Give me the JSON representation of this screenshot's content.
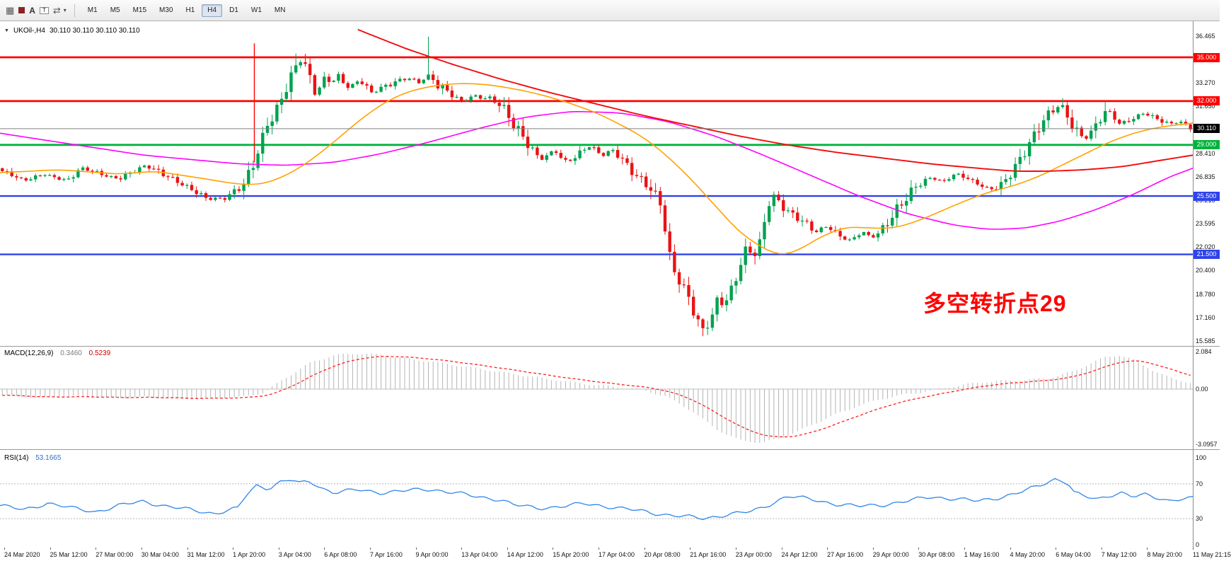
{
  "toolbar": {
    "timeframes": [
      "M1",
      "M5",
      "M15",
      "M30",
      "H1",
      "H4",
      "D1",
      "W1",
      "MN"
    ],
    "active_timeframe": "H4",
    "icons": {
      "grid": "▦",
      "text_tool": "A",
      "objects": "T",
      "cursor": "⇄",
      "caret": "▾"
    }
  },
  "chart": {
    "title": "UKOil-,H4",
    "ohlc_text": "30.110 30.110 30.110 30.110",
    "collapse_icon": "▼",
    "annotation": "多空转折点29",
    "annotation_color": "#ff0000",
    "axis_ticks": [
      "36.465",
      "33.270",
      "31.650",
      "28.410",
      "26.835",
      "25.215",
      "23.595",
      "22.020",
      "20.400",
      "18.780",
      "17.160",
      "15.585"
    ],
    "levels": [
      {
        "label": "35.000",
        "price": 35.0,
        "color": "#ff0000",
        "width": 2.8
      },
      {
        "label": "32.000",
        "price": 32.0,
        "color": "#ff0000",
        "width": 2.8
      },
      {
        "label": "29.000",
        "price": 29.0,
        "color": "#00b33c",
        "width": 2.8
      },
      {
        "label": "25.500",
        "price": 25.5,
        "color": "#2e43eb",
        "width": 2.4
      },
      {
        "label": "21.500",
        "price": 21.5,
        "color": "#2e43eb",
        "width": 2.4
      }
    ],
    "current_price": {
      "label": "30.110",
      "price": 30.11,
      "color": "#000000"
    }
  },
  "macd": {
    "label": "MACD(12,26,9)",
    "value_main": "0.3460",
    "value_signal": "0.5239",
    "axis_labels": [
      "2.084",
      "0.00",
      "-3.0957"
    ]
  },
  "rsi": {
    "label": "RSI(14)",
    "value": "53.1665",
    "axis_labels": [
      "100",
      "70",
      "30",
      "0"
    ]
  },
  "time_axis": {
    "labels": [
      "24 Mar 2020",
      "25 Mar 12:00",
      "27 Mar 00:00",
      "30 Mar 04:00",
      "31 Mar 12:00",
      "1 Apr 20:00",
      "3 Apr 04:00",
      "6 Apr 08:00",
      "7 Apr 16:00",
      "9 Apr 00:00",
      "13 Apr 04:00",
      "14 Apr 12:00",
      "15 Apr 20:00",
      "17 Apr 04:00",
      "20 Apr 08:00",
      "21 Apr 16:00",
      "23 Apr 00:00",
      "24 Apr 12:00",
      "27 Apr 16:00",
      "29 Apr 00:00",
      "30 Apr 08:00",
      "1 May 16:00",
      "4 May 20:00",
      "6 May 04:00",
      "7 May 12:00",
      "8 May 20:00",
      "11 May 21:15"
    ]
  },
  "chart_data": {
    "type": "candlestick",
    "symbol": "UKOil-",
    "period": "H4",
    "price_keyframes": [
      [
        0,
        27.2
      ],
      [
        0.018,
        26.5
      ],
      [
        0.036,
        27.0
      ],
      [
        0.055,
        26.6
      ],
      [
        0.066,
        27.4
      ],
      [
        0.085,
        26.9
      ],
      [
        0.098,
        26.7
      ],
      [
        0.11,
        27.3
      ],
      [
        0.121,
        27.6
      ],
      [
        0.135,
        26.9
      ],
      [
        0.151,
        26.3
      ],
      [
        0.165,
        25.8
      ],
      [
        0.172,
        25.4
      ],
      [
        0.187,
        25.3
      ],
      [
        0.197,
        25.8
      ],
      [
        0.203,
        26.1
      ],
      [
        0.21,
        27.3
      ],
      [
        0.216,
        28.8
      ],
      [
        0.223,
        30.6
      ],
      [
        0.229,
        31.3
      ],
      [
        0.236,
        32.5
      ],
      [
        0.242,
        33.6
      ],
      [
        0.249,
        34.6
      ],
      [
        0.252,
        34.8
      ],
      [
        0.258,
        33.6
      ],
      [
        0.262,
        32.4
      ],
      [
        0.268,
        33.0
      ],
      [
        0.272,
        33.6
      ],
      [
        0.278,
        33.3
      ],
      [
        0.282,
        33.9
      ],
      [
        0.288,
        33.2
      ],
      [
        0.292,
        33.0
      ],
      [
        0.301,
        33.5
      ],
      [
        0.307,
        32.9
      ],
      [
        0.311,
        32.5
      ],
      [
        0.318,
        32.8
      ],
      [
        0.325,
        33.0
      ],
      [
        0.331,
        33.3
      ],
      [
        0.338,
        33.5
      ],
      [
        0.344,
        33.6
      ],
      [
        0.351,
        33.3
      ],
      [
        0.359,
        33.8
      ],
      [
        0.364,
        33.4
      ],
      [
        0.367,
        33.0
      ],
      [
        0.373,
        32.7
      ],
      [
        0.377,
        32.4
      ],
      [
        0.383,
        32.1
      ],
      [
        0.387,
        31.9
      ],
      [
        0.393,
        32.2
      ],
      [
        0.397,
        32.4
      ],
      [
        0.403,
        32.2
      ],
      [
        0.41,
        32.3
      ],
      [
        0.419,
        31.9
      ],
      [
        0.425,
        31.2
      ],
      [
        0.429,
        30.5
      ],
      [
        0.433,
        30.0
      ],
      [
        0.436,
        29.6
      ],
      [
        0.441,
        29.0
      ],
      [
        0.446,
        28.5
      ],
      [
        0.451,
        28.1
      ],
      [
        0.455,
        28.0
      ],
      [
        0.46,
        28.4
      ],
      [
        0.465,
        28.7
      ],
      [
        0.47,
        28.2
      ],
      [
        0.475,
        27.9
      ],
      [
        0.48,
        28.1
      ],
      [
        0.485,
        28.4
      ],
      [
        0.49,
        28.7
      ],
      [
        0.495,
        28.9
      ],
      [
        0.5,
        28.5
      ],
      [
        0.505,
        28.2
      ],
      [
        0.51,
        28.5
      ],
      [
        0.514,
        28.6
      ],
      [
        0.519,
        28.2
      ],
      [
        0.524,
        27.9
      ],
      [
        0.529,
        27.4
      ],
      [
        0.534,
        27.0
      ],
      [
        0.539,
        26.7
      ],
      [
        0.544,
        26.3
      ],
      [
        0.549,
        25.6
      ],
      [
        0.554,
        24.9
      ],
      [
        0.558,
        23.0
      ],
      [
        0.562,
        21.0
      ],
      [
        0.565,
        20.2
      ],
      [
        0.57,
        19.5
      ],
      [
        0.575,
        18.8
      ],
      [
        0.579,
        18.3
      ],
      [
        0.583,
        17.4
      ],
      [
        0.587,
        16.8
      ],
      [
        0.59,
        16.4
      ],
      [
        0.594,
        17.0
      ],
      [
        0.598,
        17.6
      ],
      [
        0.603,
        18.8
      ],
      [
        0.607,
        18.1
      ],
      [
        0.611,
        18.6
      ],
      [
        0.616,
        19.3
      ],
      [
        0.62,
        20.4
      ],
      [
        0.623,
        21.1
      ],
      [
        0.627,
        21.7
      ],
      [
        0.631,
        21.4
      ],
      [
        0.636,
        21.6
      ],
      [
        0.641,
        23.5
      ],
      [
        0.645,
        25.2
      ],
      [
        0.649,
        25.6
      ],
      [
        0.655,
        25.1
      ],
      [
        0.66,
        24.7
      ],
      [
        0.665,
        24.3
      ],
      [
        0.67,
        24.0
      ],
      [
        0.675,
        23.7
      ],
      [
        0.68,
        23.2
      ],
      [
        0.685,
        23.0
      ],
      [
        0.69,
        23.3
      ],
      [
        0.695,
        23.4
      ],
      [
        0.7,
        23.0
      ],
      [
        0.704,
        22.8
      ],
      [
        0.71,
        22.6
      ],
      [
        0.714,
        22.5
      ],
      [
        0.72,
        22.9
      ],
      [
        0.724,
        23.1
      ],
      [
        0.729,
        22.8
      ],
      [
        0.734,
        22.7
      ],
      [
        0.739,
        23.0
      ],
      [
        0.744,
        23.4
      ],
      [
        0.749,
        23.9
      ],
      [
        0.754,
        24.5
      ],
      [
        0.759,
        25.1
      ],
      [
        0.764,
        25.7
      ],
      [
        0.768,
        26.2
      ],
      [
        0.773,
        26.5
      ],
      [
        0.778,
        26.7
      ],
      [
        0.783,
        26.8
      ],
      [
        0.788,
        26.6
      ],
      [
        0.793,
        26.5
      ],
      [
        0.798,
        26.8
      ],
      [
        0.803,
        27.0
      ],
      [
        0.808,
        26.8
      ],
      [
        0.813,
        26.6
      ],
      [
        0.817,
        26.4
      ],
      [
        0.822,
        26.3
      ],
      [
        0.827,
        26.1
      ],
      [
        0.832,
        26.0
      ],
      [
        0.837,
        26.2
      ],
      [
        0.842,
        26.5
      ],
      [
        0.847,
        27.0
      ],
      [
        0.852,
        27.5
      ],
      [
        0.857,
        28.0
      ],
      [
        0.862,
        28.6
      ],
      [
        0.867,
        29.2
      ],
      [
        0.872,
        29.9
      ],
      [
        0.876,
        30.5
      ],
      [
        0.881,
        31.0
      ],
      [
        0.886,
        31.5
      ],
      [
        0.891,
        31.8
      ],
      [
        0.896,
        31.2
      ],
      [
        0.901,
        30.5
      ],
      [
        0.906,
        29.9
      ],
      [
        0.911,
        29.4
      ],
      [
        0.916,
        29.8
      ],
      [
        0.921,
        30.3
      ],
      [
        0.926,
        30.9
      ],
      [
        0.93,
        31.4
      ],
      [
        0.935,
        30.9
      ],
      [
        0.94,
        30.4
      ],
      [
        0.945,
        30.6
      ],
      [
        0.95,
        30.8
      ],
      [
        0.955,
        31.0
      ],
      [
        0.96,
        31.2
      ],
      [
        0.965,
        31.1
      ],
      [
        0.97,
        30.9
      ],
      [
        0.975,
        30.7
      ],
      [
        0.98,
        30.5
      ],
      [
        0.985,
        30.4
      ],
      [
        0.99,
        30.6
      ],
      [
        0.995,
        30.3
      ],
      [
        1,
        30.11
      ]
    ],
    "spikes": [
      {
        "t": 0.359,
        "high": 36.42
      },
      {
        "t": 0.249,
        "high": 35.25
      },
      {
        "t": 0.59,
        "low": 15.9
      },
      {
        "t": 0.891,
        "high": 32.2
      },
      {
        "t": 0.93,
        "high": 32.0
      }
    ],
    "vline": {
      "t": 0.2132,
      "from": 35.95,
      "to": 27.8,
      "color": "#ff0000"
    },
    "ma_orange": [
      [
        0,
        27.1
      ],
      [
        0.05,
        27.3
      ],
      [
        0.1,
        27.0
      ],
      [
        0.13,
        27.2
      ],
      [
        0.17,
        26.7
      ],
      [
        0.2,
        26.3
      ],
      [
        0.22,
        26.3
      ],
      [
        0.24,
        26.9
      ],
      [
        0.26,
        27.9
      ],
      [
        0.28,
        29.2
      ],
      [
        0.3,
        30.6
      ],
      [
        0.32,
        31.8
      ],
      [
        0.34,
        32.6
      ],
      [
        0.36,
        33.0
      ],
      [
        0.38,
        33.2
      ],
      [
        0.4,
        33.2
      ],
      [
        0.42,
        33.0
      ],
      [
        0.44,
        32.7
      ],
      [
        0.46,
        32.3
      ],
      [
        0.48,
        31.8
      ],
      [
        0.5,
        31.2
      ],
      [
        0.52,
        30.4
      ],
      [
        0.54,
        29.5
      ],
      [
        0.56,
        28.2
      ],
      [
        0.58,
        26.6
      ],
      [
        0.6,
        24.8
      ],
      [
        0.62,
        23.0
      ],
      [
        0.64,
        21.9
      ],
      [
        0.655,
        21.4
      ],
      [
        0.67,
        21.8
      ],
      [
        0.69,
        22.8
      ],
      [
        0.71,
        23.4
      ],
      [
        0.73,
        23.3
      ],
      [
        0.75,
        23.3
      ],
      [
        0.77,
        23.8
      ],
      [
        0.79,
        24.5
      ],
      [
        0.81,
        25.2
      ],
      [
        0.83,
        25.8
      ],
      [
        0.85,
        26.2
      ],
      [
        0.87,
        26.8
      ],
      [
        0.89,
        27.6
      ],
      [
        0.91,
        28.4
      ],
      [
        0.93,
        29.2
      ],
      [
        0.95,
        29.8
      ],
      [
        0.97,
        30.2
      ],
      [
        1,
        30.5
      ]
    ],
    "ma_magenta": [
      [
        0,
        29.8
      ],
      [
        0.04,
        29.3
      ],
      [
        0.08,
        28.8
      ],
      [
        0.12,
        28.3
      ],
      [
        0.16,
        28.0
      ],
      [
        0.2,
        27.7
      ],
      [
        0.24,
        27.6
      ],
      [
        0.28,
        27.8
      ],
      [
        0.32,
        28.4
      ],
      [
        0.36,
        29.2
      ],
      [
        0.4,
        30.1
      ],
      [
        0.44,
        30.9
      ],
      [
        0.48,
        31.3
      ],
      [
        0.52,
        31.2
      ],
      [
        0.56,
        30.6
      ],
      [
        0.6,
        29.6
      ],
      [
        0.64,
        28.3
      ],
      [
        0.68,
        26.9
      ],
      [
        0.72,
        25.5
      ],
      [
        0.76,
        24.3
      ],
      [
        0.8,
        23.5
      ],
      [
        0.83,
        23.2
      ],
      [
        0.86,
        23.3
      ],
      [
        0.89,
        23.8
      ],
      [
        0.92,
        24.6
      ],
      [
        0.95,
        25.6
      ],
      [
        0.98,
        26.8
      ],
      [
        1,
        27.4
      ]
    ],
    "ma_red": [
      [
        0.3,
        36.9
      ],
      [
        0.34,
        35.6
      ],
      [
        0.38,
        34.5
      ],
      [
        0.42,
        33.5
      ],
      [
        0.46,
        32.6
      ],
      [
        0.5,
        31.8
      ],
      [
        0.54,
        31.0
      ],
      [
        0.58,
        30.3
      ],
      [
        0.62,
        29.6
      ],
      [
        0.66,
        29.0
      ],
      [
        0.7,
        28.5
      ],
      [
        0.74,
        28.1
      ],
      [
        0.78,
        27.7
      ],
      [
        0.82,
        27.4
      ],
      [
        0.85,
        27.2
      ],
      [
        0.88,
        27.2
      ],
      [
        0.91,
        27.3
      ],
      [
        0.94,
        27.5
      ],
      [
        0.97,
        27.9
      ],
      [
        1,
        28.3
      ]
    ],
    "macd_keyframes": [
      [
        0,
        -0.35
      ],
      [
        0.03,
        -0.5
      ],
      [
        0.06,
        -0.4
      ],
      [
        0.09,
        -0.5
      ],
      [
        0.12,
        -0.45
      ],
      [
        0.15,
        -0.55
      ],
      [
        0.18,
        -0.5
      ],
      [
        0.2,
        -0.45
      ],
      [
        0.22,
        -0.2
      ],
      [
        0.24,
        0.7
      ],
      [
        0.26,
        1.5
      ],
      [
        0.28,
        1.9
      ],
      [
        0.3,
        2.0
      ],
      [
        0.32,
        1.9
      ],
      [
        0.34,
        1.7
      ],
      [
        0.36,
        1.55
      ],
      [
        0.38,
        1.35
      ],
      [
        0.4,
        1.15
      ],
      [
        0.43,
        0.85
      ],
      [
        0.46,
        0.55
      ],
      [
        0.49,
        0.3
      ],
      [
        0.52,
        0.1
      ],
      [
        0.54,
        -0.05
      ],
      [
        0.56,
        -0.45
      ],
      [
        0.58,
        -1.2
      ],
      [
        0.6,
        -2.2
      ],
      [
        0.62,
        -2.85
      ],
      [
        0.64,
        -3.0
      ],
      [
        0.66,
        -2.65
      ],
      [
        0.68,
        -2.05
      ],
      [
        0.7,
        -1.45
      ],
      [
        0.72,
        -0.95
      ],
      [
        0.74,
        -0.55
      ],
      [
        0.76,
        -0.3
      ],
      [
        0.78,
        -0.1
      ],
      [
        0.8,
        0.15
      ],
      [
        0.82,
        0.35
      ],
      [
        0.84,
        0.45
      ],
      [
        0.86,
        0.5
      ],
      [
        0.88,
        0.6
      ],
      [
        0.9,
        0.95
      ],
      [
        0.92,
        1.55
      ],
      [
        0.93,
        1.8
      ],
      [
        0.94,
        1.9
      ],
      [
        0.95,
        1.7
      ],
      [
        0.96,
        1.35
      ],
      [
        0.97,
        1.0
      ],
      [
        0.98,
        0.7
      ],
      [
        0.99,
        0.5
      ],
      [
        1,
        0.35
      ]
    ],
    "rsi_levels": [
      70,
      30
    ],
    "rsi_keyframes": [
      [
        0,
        45
      ],
      [
        0.02,
        40
      ],
      [
        0.04,
        48
      ],
      [
        0.06,
        42
      ],
      [
        0.08,
        38
      ],
      [
        0.1,
        45
      ],
      [
        0.12,
        50
      ],
      [
        0.14,
        44
      ],
      [
        0.16,
        40
      ],
      [
        0.18,
        36
      ],
      [
        0.2,
        42
      ],
      [
        0.205,
        55
      ],
      [
        0.215,
        68
      ],
      [
        0.225,
        65
      ],
      [
        0.235,
        72
      ],
      [
        0.245,
        75
      ],
      [
        0.25,
        70
      ],
      [
        0.26,
        73
      ],
      [
        0.27,
        65
      ],
      [
        0.28,
        60
      ],
      [
        0.3,
        63
      ],
      [
        0.32,
        60
      ],
      [
        0.34,
        62
      ],
      [
        0.36,
        64
      ],
      [
        0.38,
        60
      ],
      [
        0.4,
        55
      ],
      [
        0.42,
        52
      ],
      [
        0.43,
        46
      ],
      [
        0.45,
        42
      ],
      [
        0.47,
        44
      ],
      [
        0.49,
        47
      ],
      [
        0.51,
        44
      ],
      [
        0.53,
        40
      ],
      [
        0.55,
        36
      ],
      [
        0.57,
        33
      ],
      [
        0.59,
        30
      ],
      [
        0.61,
        35
      ],
      [
        0.63,
        38
      ],
      [
        0.64,
        43
      ],
      [
        0.66,
        56
      ],
      [
        0.68,
        52
      ],
      [
        0.7,
        47
      ],
      [
        0.72,
        44
      ],
      [
        0.74,
        46
      ],
      [
        0.76,
        50
      ],
      [
        0.78,
        55
      ],
      [
        0.8,
        53
      ],
      [
        0.82,
        50
      ],
      [
        0.84,
        55
      ],
      [
        0.86,
        62
      ],
      [
        0.875,
        70
      ],
      [
        0.885,
        76
      ],
      [
        0.895,
        72
      ],
      [
        0.9,
        60
      ],
      [
        0.91,
        55
      ],
      [
        0.92,
        52
      ],
      [
        0.93,
        57
      ],
      [
        0.94,
        60
      ],
      [
        0.95,
        55
      ],
      [
        0.96,
        57
      ],
      [
        0.97,
        54
      ],
      [
        0.98,
        51
      ],
      [
        0.99,
        53
      ],
      [
        1,
        53.17
      ]
    ]
  }
}
